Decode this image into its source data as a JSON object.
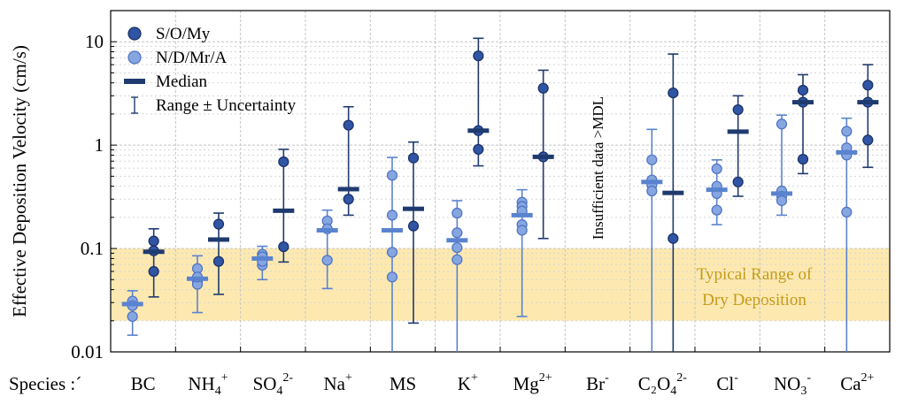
{
  "chart_data": {
    "type": "scatter",
    "ylabel": "Effective Deposition Velocity (cm/s)",
    "yscale": "log",
    "ylim": [
      0.01,
      20
    ],
    "yticks": [
      {
        "value": 0.01,
        "label": "0.01"
      },
      {
        "value": 0.1,
        "label": "0.1"
      },
      {
        "value": 1,
        "label": "1"
      },
      {
        "value": 10,
        "label": "10"
      }
    ],
    "xaxis_prefix": "Species :´",
    "categories": [
      {
        "key": "BC",
        "label": "BC",
        "sub": "",
        "sup": ""
      },
      {
        "key": "NH4",
        "label": "NH",
        "sub": "4",
        "sup": "+"
      },
      {
        "key": "SO4",
        "label": "SO",
        "sub": "4",
        "sup": "2-"
      },
      {
        "key": "Na",
        "label": "Na",
        "sub": "",
        "sup": "+"
      },
      {
        "key": "MS",
        "label": "MS",
        "sub": "",
        "sup": ""
      },
      {
        "key": "K",
        "label": "K",
        "sub": "",
        "sup": "+"
      },
      {
        "key": "Mg",
        "label": "Mg",
        "sub": "",
        "sup": "2+"
      },
      {
        "key": "Br",
        "label": "Br",
        "sub": "",
        "sup": "-"
      },
      {
        "key": "C2O4",
        "label": "C₂O",
        "sub": "4",
        "sup": "2-"
      },
      {
        "key": "Cl",
        "label": "Cl",
        "sub": "",
        "sup": "-"
      },
      {
        "key": "NO3",
        "label": "NO",
        "sub": "3",
        "sup": "-"
      },
      {
        "key": "Ca",
        "label": "Ca",
        "sub": "",
        "sup": "2+"
      }
    ],
    "band": {
      "range": [
        0.02,
        0.1
      ],
      "label_lines": [
        "Typical Range of",
        "Dry Deposition"
      ],
      "color": "#fde9b0",
      "text_color": "#c49a17"
    },
    "annotation": {
      "text": "Insufficient data >MDL",
      "category": "Br"
    },
    "legend": {
      "position": "top-left",
      "entries": [
        {
          "name": "S/O/My",
          "kind": "dark-marker"
        },
        {
          "name": "N/D/Mr/A",
          "kind": "light-marker"
        },
        {
          "name": "Median",
          "kind": "median"
        },
        {
          "name": "Range ± Uncertainty",
          "kind": "range"
        }
      ]
    },
    "series": [
      {
        "name": "S/O/My",
        "color": "#2f55a4",
        "edge": "#1a2f63",
        "median_color": "#1f3a6e",
        "data": [
          {
            "category": "BC",
            "points": [
              0.118,
              0.06,
              0.095
            ],
            "median": 0.093,
            "range": [
              0.034,
              0.155
            ]
          },
          {
            "category": "NH4",
            "points": [
              0.172,
              0.075
            ],
            "median": 0.122,
            "range": [
              0.036,
              0.22
            ]
          },
          {
            "category": "SO4",
            "points": [
              0.69,
              0.104
            ],
            "median": 0.232,
            "range": [
              0.074,
              0.91
            ]
          },
          {
            "category": "Na",
            "points": [
              1.56,
              0.3
            ],
            "median": 0.375,
            "range": [
              0.21,
              2.35
            ]
          },
          {
            "category": "MS",
            "points": [
              0.75,
              0.165
            ],
            "median": 0.242,
            "range": [
              0.019,
              1.07
            ]
          },
          {
            "category": "K",
            "points": [
              7.3,
              0.91,
              1.38
            ],
            "median": 1.38,
            "range": [
              0.63,
              10.8
            ]
          },
          {
            "category": "Mg",
            "points": [
              3.55,
              0.77
            ],
            "median": 0.77,
            "range": [
              0.125,
              5.3
            ]
          },
          {
            "category": "C2O4",
            "points": [
              3.2,
              0.125
            ],
            "median": 0.345,
            "range": [
              0.01,
              7.6
            ]
          },
          {
            "category": "Cl",
            "points": [
              2.2,
              0.44
            ],
            "median": 1.35,
            "range": [
              0.32,
              3.0
            ]
          },
          {
            "category": "NO3",
            "points": [
              3.4,
              0.73,
              2.6
            ],
            "median": 2.6,
            "range": [
              0.53,
              4.8
            ]
          },
          {
            "category": "Ca",
            "points": [
              3.8,
              1.12,
              2.6
            ],
            "median": 2.6,
            "range": [
              0.61,
              6.0
            ]
          }
        ]
      },
      {
        "name": "N/D/Mr/A",
        "color": "#86a6e0",
        "edge": "#4d71c4",
        "median_color": "#5a83cf",
        "data": [
          {
            "category": "BC",
            "points": [
              0.031,
              0.022,
              0.028
            ],
            "median": 0.029,
            "range": [
              0.0145,
              0.039
            ]
          },
          {
            "category": "NH4",
            "points": [
              0.064,
              0.048,
              0.045,
              0.053
            ],
            "median": 0.051,
            "range": [
              0.024,
              0.085
            ]
          },
          {
            "category": "SO4",
            "points": [
              0.088,
              0.083,
              0.069,
              0.075
            ],
            "median": 0.08,
            "range": [
              0.05,
              0.105
            ]
          },
          {
            "category": "Na",
            "points": [
              0.185,
              0.077,
              0.155
            ],
            "median": 0.15,
            "range": [
              0.041,
              0.235
            ]
          },
          {
            "category": "MS",
            "points": [
              0.51,
              0.21,
              0.092,
              0.053
            ],
            "median": 0.15,
            "range": [
              0.01,
              0.76
            ]
          },
          {
            "category": "K",
            "points": [
              0.22,
              0.142,
              0.102,
              0.078
            ],
            "median": 0.12,
            "range": [
              0.01,
              0.29
            ]
          },
          {
            "category": "Mg",
            "points": [
              0.28,
              0.255,
              0.23,
              0.17,
              0.15
            ],
            "median": 0.21,
            "range": [
              0.022,
              0.37
            ]
          },
          {
            "category": "C2O4",
            "points": [
              0.72,
              0.46,
              0.41,
              0.36
            ],
            "median": 0.44,
            "range": [
              0.01,
              1.42
            ]
          },
          {
            "category": "Cl",
            "points": [
              0.59,
              0.4,
              0.34,
              0.235
            ],
            "median": 0.37,
            "range": [
              0.17,
              0.72
            ]
          },
          {
            "category": "NO3",
            "points": [
              1.6,
              0.36,
              0.32,
              0.29
            ],
            "median": 0.34,
            "range": [
              0.21,
              1.95
            ]
          },
          {
            "category": "Ca",
            "points": [
              1.36,
              0.94,
              0.8,
              0.225
            ],
            "median": 0.85,
            "range": [
              0.01,
              1.82
            ]
          }
        ]
      }
    ]
  }
}
